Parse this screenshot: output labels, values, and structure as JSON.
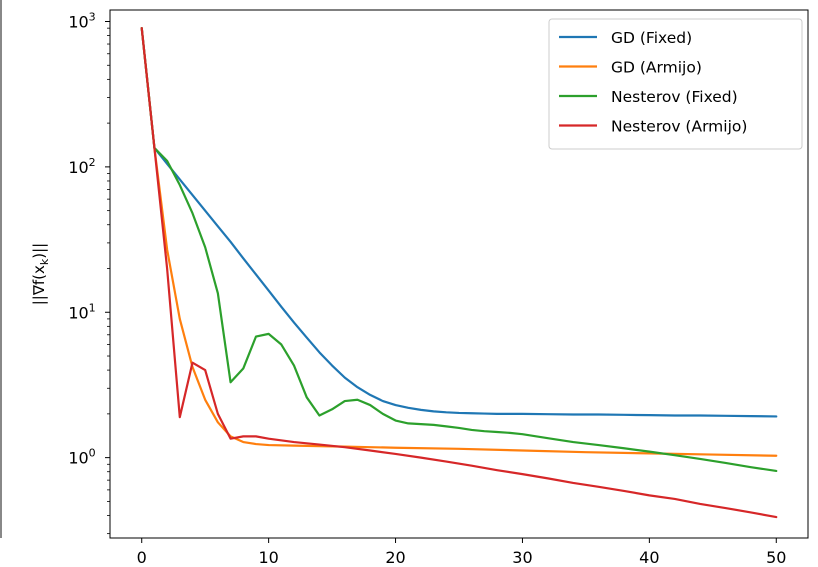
{
  "chart_data": {
    "type": "line",
    "ylabel": "||∇f(x_k)||",
    "yscale": "log",
    "xlim": [
      -2.5,
      52.5
    ],
    "ylim": [
      0.28,
      1200
    ],
    "x_ticks": [
      0,
      10,
      20,
      30,
      40,
      50
    ],
    "y_ticks": [
      {
        "value": 1,
        "base": "10",
        "exp": "0"
      },
      {
        "value": 10,
        "base": "10",
        "exp": "1"
      },
      {
        "value": 100,
        "base": "10",
        "exp": "2"
      },
      {
        "value": 1000,
        "base": "10",
        "exp": "3"
      }
    ],
    "legend_position": "top-right",
    "grid": false,
    "series": [
      {
        "name": "GD (Fixed)",
        "color": "#1f77b4",
        "x": [
          0,
          1,
          2,
          3,
          4,
          5,
          6,
          7,
          8,
          9,
          10,
          11,
          12,
          13,
          14,
          15,
          16,
          17,
          18,
          19,
          20,
          21,
          22,
          23,
          24,
          25,
          26,
          27,
          28,
          29,
          30,
          32,
          34,
          36,
          38,
          40,
          42,
          44,
          46,
          48,
          50
        ],
        "y": [
          900,
          135,
          105,
          82,
          64,
          50,
          39,
          30.5,
          23.5,
          18.2,
          14.1,
          10.9,
          8.5,
          6.7,
          5.3,
          4.3,
          3.55,
          3.05,
          2.7,
          2.45,
          2.3,
          2.2,
          2.13,
          2.08,
          2.05,
          2.03,
          2.02,
          2.01,
          2.0,
          2.0,
          2.0,
          1.99,
          1.98,
          1.98,
          1.97,
          1.96,
          1.95,
          1.95,
          1.94,
          1.93,
          1.92
        ]
      },
      {
        "name": "GD (Armijo)",
        "color": "#ff7f0e",
        "x": [
          0,
          1,
          2,
          3,
          4,
          5,
          6,
          7,
          8,
          9,
          10,
          12,
          14,
          16,
          18,
          20,
          25,
          30,
          35,
          40,
          45,
          50
        ],
        "y": [
          900,
          135,
          27,
          9,
          4.2,
          2.5,
          1.75,
          1.4,
          1.28,
          1.24,
          1.22,
          1.21,
          1.2,
          1.19,
          1.18,
          1.17,
          1.15,
          1.12,
          1.09,
          1.07,
          1.05,
          1.03
        ]
      },
      {
        "name": "Nesterov (Fixed)",
        "color": "#2ca02c",
        "x": [
          0,
          1,
          2,
          3,
          4,
          5,
          6,
          7,
          8,
          9,
          10,
          11,
          12,
          13,
          14,
          15,
          16,
          17,
          18,
          19,
          20,
          21,
          22,
          23,
          24,
          25,
          26,
          27,
          28,
          29,
          30,
          32,
          34,
          36,
          38,
          40,
          42,
          44,
          46,
          48,
          50
        ],
        "y": [
          900,
          135,
          110,
          75,
          48,
          28,
          13.5,
          3.3,
          4.1,
          6.8,
          7.1,
          6.0,
          4.3,
          2.6,
          1.95,
          2.15,
          2.45,
          2.5,
          2.3,
          2.0,
          1.8,
          1.72,
          1.7,
          1.68,
          1.64,
          1.6,
          1.55,
          1.52,
          1.5,
          1.48,
          1.45,
          1.36,
          1.28,
          1.22,
          1.16,
          1.1,
          1.04,
          0.98,
          0.92,
          0.86,
          0.81
        ]
      },
      {
        "name": "Nesterov (Armijo)",
        "color": "#d62728",
        "x": [
          0,
          1,
          2,
          3,
          4,
          5,
          6,
          7,
          8,
          9,
          10,
          12,
          14,
          16,
          18,
          20,
          22,
          24,
          26,
          28,
          30,
          32,
          34,
          36,
          38,
          40,
          42,
          44,
          46,
          48,
          50
        ],
        "y": [
          900,
          135,
          20,
          1.9,
          4.5,
          4.0,
          2.0,
          1.35,
          1.4,
          1.4,
          1.35,
          1.28,
          1.23,
          1.18,
          1.12,
          1.06,
          1.0,
          0.94,
          0.88,
          0.82,
          0.77,
          0.72,
          0.67,
          0.63,
          0.59,
          0.55,
          0.52,
          0.48,
          0.45,
          0.42,
          0.39
        ]
      }
    ]
  }
}
